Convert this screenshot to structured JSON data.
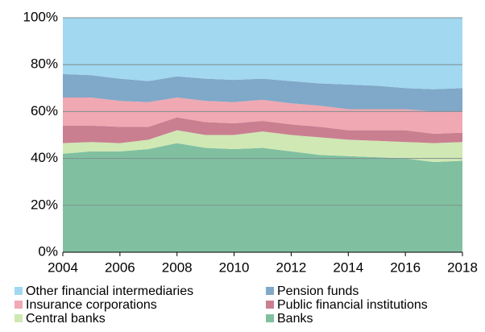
{
  "chart_data": {
    "type": "stacked_area",
    "x": [
      2004,
      2005,
      2006,
      2007,
      2008,
      2009,
      2010,
      2011,
      2012,
      2013,
      2014,
      2015,
      2016,
      2017,
      2018
    ],
    "series": [
      {
        "name": "Banks",
        "color": "#80c0a0",
        "values": [
          42,
          43,
          43,
          44,
          46.5,
          44.5,
          44,
          44.5,
          43,
          41.5,
          41,
          40.5,
          40,
          38.5,
          39
        ]
      },
      {
        "name": "Central banks",
        "color": "#d0e8b4",
        "values": [
          4.5,
          4,
          3.5,
          4,
          5.5,
          5.5,
          6,
          7,
          7,
          7.5,
          7,
          7,
          7,
          8,
          8
        ]
      },
      {
        "name": "Public financial institutions",
        "color": "#c97f90",
        "values": [
          7.5,
          7,
          7,
          5.5,
          5.5,
          5.5,
          5,
          4.5,
          4.5,
          4.5,
          4,
          4.5,
          5,
          4,
          4
        ]
      },
      {
        "name": "Insurance corporations",
        "color": "#f0a8b2",
        "values": [
          12,
          12,
          11,
          10.5,
          8.5,
          9,
          9,
          9,
          9,
          9,
          9,
          9,
          9,
          9.5,
          9
        ]
      },
      {
        "name": "Pension funds",
        "color": "#80a8c8",
        "values": [
          10,
          9.5,
          9.5,
          9,
          9,
          9.5,
          9.5,
          9,
          9.5,
          9.5,
          10.5,
          10,
          9,
          9.5,
          10
        ]
      },
      {
        "name": "Other financial intermediaries",
        "color": "#a2d8f0",
        "values": [
          24,
          24.5,
          26,
          27,
          25,
          26,
          26.5,
          26,
          27,
          28,
          28.5,
          29,
          30,
          30.5,
          30
        ]
      }
    ],
    "xlim": [
      2004,
      2018
    ],
    "xticks": [
      2004,
      2006,
      2008,
      2010,
      2012,
      2014,
      2016,
      2018
    ],
    "ylim": [
      0,
      100
    ],
    "yticks": [
      {
        "value": 0,
        "label": "0%"
      },
      {
        "value": 20,
        "label": "20%"
      },
      {
        "value": 40,
        "label": "40%"
      },
      {
        "value": 60,
        "label": "60%"
      },
      {
        "value": 80,
        "label": "80%"
      },
      {
        "value": 100,
        "label": "100%"
      }
    ],
    "grid": true
  }
}
